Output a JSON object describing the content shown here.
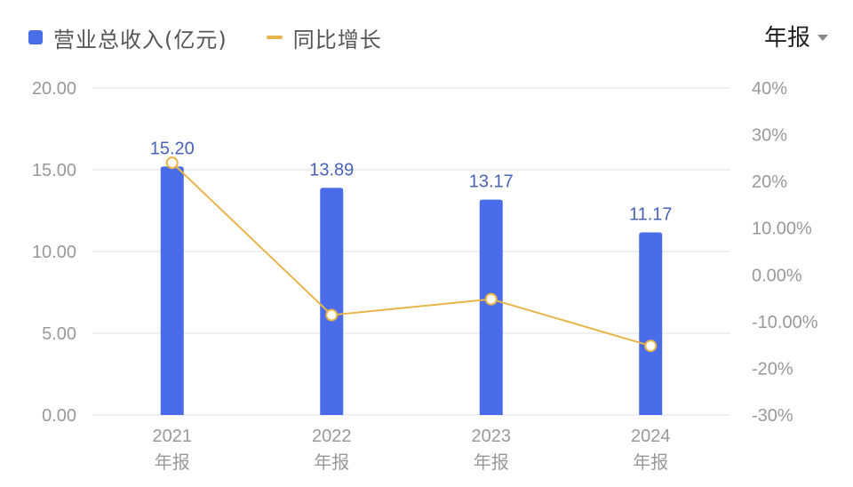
{
  "legend": {
    "bar_label": "营业总收入(亿元)",
    "line_label": "同比增长"
  },
  "period_selector": {
    "value": "年报",
    "icon": "caret-down-icon"
  },
  "colors": {
    "bar": "#4A6CE8",
    "line": "#E8B54A",
    "bar_label": "#4A63B8",
    "axis_text": "#999999",
    "grid": "#EBEBEB"
  },
  "chart_data": {
    "type": "bar+line",
    "title": "",
    "categories": [
      "2021\n年报",
      "2022\n年报",
      "2023\n年报",
      "2024\n年报"
    ],
    "category_years": [
      "2021",
      "2022",
      "2023",
      "2024"
    ],
    "category_suffix": "年报",
    "series": [
      {
        "name": "营业总收入(亿元)",
        "type": "bar",
        "axis": "left",
        "values": [
          15.2,
          13.89,
          13.17,
          11.17
        ],
        "labels": [
          "15.20",
          "13.89",
          "13.17",
          "11.17"
        ]
      },
      {
        "name": "同比增长",
        "type": "line",
        "axis": "right",
        "unit": "%",
        "values": [
          24.0,
          -8.6,
          -5.2,
          -15.2
        ]
      }
    ],
    "left_axis": {
      "ylim": [
        0,
        20
      ],
      "ticks": [
        "20.00",
        "15.00",
        "10.00",
        "5.00",
        "0.00"
      ],
      "tick_values": [
        20,
        15,
        10,
        5,
        0
      ]
    },
    "right_axis": {
      "ylim": [
        -30,
        40
      ],
      "ticks": [
        "40%",
        "30%",
        "20%",
        "10.00%",
        "0.00%",
        "-10.00%",
        "-20%",
        "-30%"
      ],
      "tick_values": [
        40,
        30,
        20,
        10,
        0,
        -10,
        -20,
        -30
      ]
    },
    "grid": true,
    "legend_position": "top-left"
  }
}
